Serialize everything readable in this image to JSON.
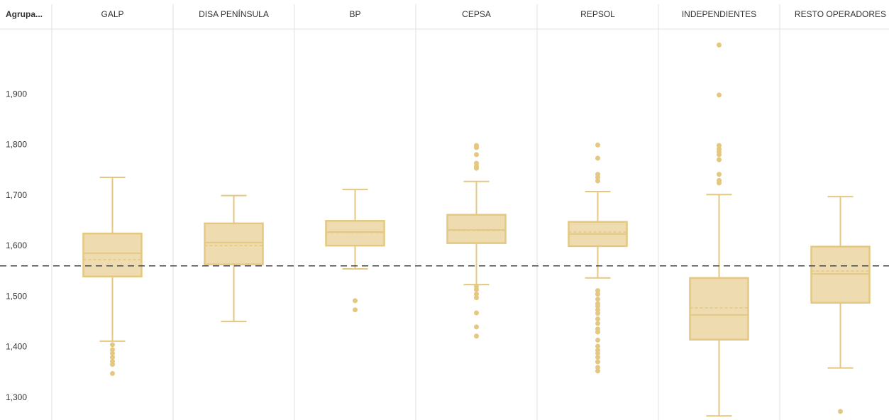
{
  "chart_data": {
    "type": "box",
    "corner_label": "Agrupa...",
    "categories": [
      "GALP",
      "DISA PENÍNSULA",
      "BP",
      "CEPSA",
      "REPSOL",
      "INDEPENDIENTES",
      "RESTO OPERADORES"
    ],
    "color": "#e4c882",
    "ylim": [
      1256,
      2028
    ],
    "yticks": [
      {
        "value": 1300,
        "label": "1,300"
      },
      {
        "value": 1400,
        "label": "1,400"
      },
      {
        "value": 1500,
        "label": "1,500"
      },
      {
        "value": 1600,
        "label": "1,600"
      },
      {
        "value": 1700,
        "label": "1,700"
      },
      {
        "value": 1800,
        "label": "1,800"
      },
      {
        "value": 1900,
        "label": "1,900"
      }
    ],
    "reference_line": 1561,
    "boxes": [
      {
        "whisker_low": 1412,
        "q1": 1540,
        "median": 1586,
        "mean": 1573,
        "q3": 1625,
        "whisker_high": 1736,
        "outliers": [
          1405,
          1395,
          1388,
          1380,
          1372,
          1366,
          1348
        ]
      },
      {
        "whisker_low": 1451,
        "q1": 1564,
        "median": 1607,
        "mean": 1601,
        "q3": 1645,
        "whisker_high": 1700,
        "outliers": []
      },
      {
        "whisker_low": 1555,
        "q1": 1601,
        "median": 1628,
        "mean": 1627,
        "q3": 1650,
        "whisker_high": 1712,
        "outliers": [
          1492,
          1474
        ]
      },
      {
        "whisker_low": 1524,
        "q1": 1606,
        "median": 1632,
        "mean": 1631,
        "q3": 1662,
        "whisker_high": 1728,
        "outliers": [
          1799,
          1795,
          1781,
          1764,
          1758,
          1754,
          1520,
          1514,
          1505,
          1498,
          1468,
          1440,
          1422
        ]
      },
      {
        "whisker_low": 1537,
        "q1": 1600,
        "median": 1624,
        "mean": 1628,
        "q3": 1648,
        "whisker_high": 1708,
        "outliers": [
          1800,
          1774,
          1742,
          1736,
          1729,
          1512,
          1505,
          1495,
          1486,
          1481,
          1474,
          1467,
          1456,
          1447,
          1436,
          1430,
          1414,
          1402,
          1394,
          1388,
          1380,
          1371,
          1360,
          1353
        ]
      },
      {
        "whisker_low": 1264,
        "q1": 1415,
        "median": 1464,
        "mean": 1478,
        "q3": 1537,
        "whisker_high": 1702,
        "outliers": [
          1998,
          1899,
          1799,
          1792,
          1786,
          1781,
          1771,
          1742,
          1730,
          1725
        ]
      },
      {
        "whisker_low": 1359,
        "q1": 1488,
        "median": 1545,
        "mean": 1551,
        "q3": 1599,
        "whisker_high": 1698,
        "outliers": [
          1273
        ]
      }
    ]
  }
}
